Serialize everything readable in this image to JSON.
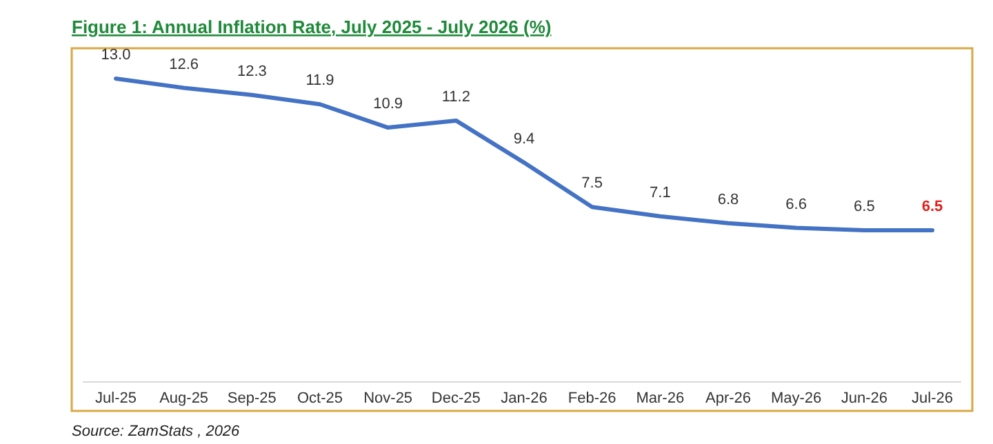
{
  "chart_data": {
    "type": "line",
    "title": "Figure 1: Annual Inflation Rate, July 2025 - July 2026 (%)",
    "categories": [
      "Jul-25",
      "Aug-25",
      "Sep-25",
      "Oct-25",
      "Nov-25",
      "Dec-25",
      "Jan-26",
      "Feb-26",
      "Mar-26",
      "Apr-26",
      "May-26",
      "Jun-26",
      "Jul-26"
    ],
    "series": [
      {
        "color": "#4472c4",
        "values": [
          13.0,
          12.6,
          12.3,
          11.9,
          10.9,
          11.2,
          9.4,
          7.5,
          7.1,
          6.8,
          6.6,
          6.5,
          6.5
        ],
        "value_labels": [
          "13.0",
          "12.6",
          "12.3",
          "11.9",
          "10.9",
          "11.2",
          "9.4",
          "7.5",
          "7.1",
          "6.8",
          "6.6",
          "6.5",
          "6.5"
        ]
      }
    ],
    "tick_labels": "x",
    "annotations": [
      "Source: ZamStats , 2026"
    ]
  }
}
